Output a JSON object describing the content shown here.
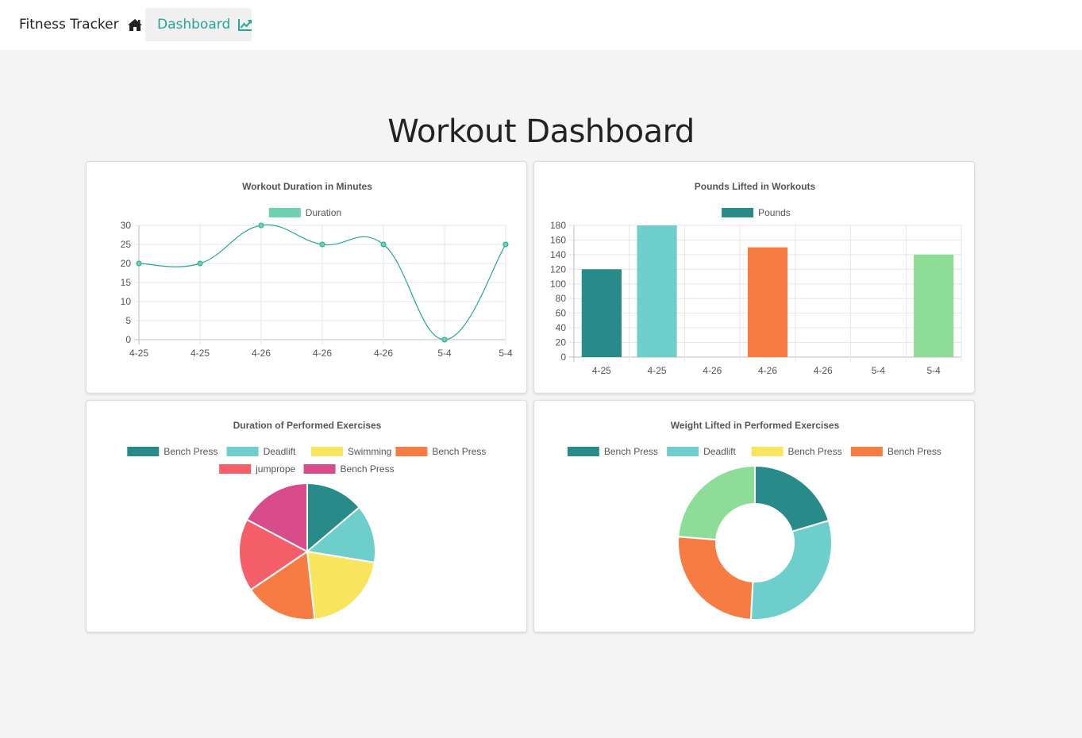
{
  "nav": {
    "brand_label": "Fitness Tracker",
    "brand_icon": "home-icon",
    "dashboard_label": "Dashboard",
    "dashboard_icon": "line-chart-icon",
    "accent_color": "#26a69a"
  },
  "page": {
    "title": "Workout Dashboard"
  },
  "chart_data": [
    {
      "type": "line",
      "title": "Workout Duration in Minutes",
      "categories": [
        "4-25",
        "4-25",
        "4-26",
        "4-26",
        "4-26",
        "5-4",
        "5-4"
      ],
      "series": [
        {
          "name": "Duration",
          "values": [
            20,
            20,
            30,
            25,
            25,
            0,
            25
          ],
          "color": "#26a69a",
          "legend_color": "#6fd1ad"
        }
      ],
      "ylim": [
        0,
        30
      ],
      "yticks": [
        0,
        5,
        10,
        15,
        20,
        25,
        30
      ],
      "grid": true,
      "legend": "top"
    },
    {
      "type": "bar",
      "title": "Pounds Lifted in Workouts",
      "categories": [
        "4-25",
        "4-25",
        "4-26",
        "4-26",
        "4-26",
        "5-4",
        "5-4"
      ],
      "series": [
        {
          "name": "Pounds",
          "values": [
            120,
            180,
            0,
            150,
            0,
            0,
            140
          ],
          "legend_color": "#288b89"
        }
      ],
      "colors": [
        "#288b89",
        "#6dcecb",
        "#f9e55d",
        "#f77c43",
        "#f55f6a",
        "#d94c8a",
        "#8ddd98"
      ],
      "ylim": [
        0,
        180
      ],
      "yticks": [
        0,
        20,
        40,
        60,
        80,
        100,
        120,
        140,
        160,
        180
      ],
      "grid": true,
      "legend": "top"
    },
    {
      "type": "pie",
      "title": "Duration of Performed Exercises",
      "labels": [
        "Bench Press",
        "Deadlift",
        "Swimming",
        "Bench Press",
        "jumprope",
        "Bench Press"
      ],
      "values": [
        20,
        20,
        30,
        25,
        25,
        25
      ],
      "colors": [
        "#288b89",
        "#6dcecb",
        "#f9e55d",
        "#f77c43",
        "#f55f6a",
        "#d94c8a",
        "#8ddd98"
      ],
      "legend": "top"
    },
    {
      "type": "pie",
      "donut": true,
      "title": "Weight Lifted in Performed Exercises",
      "labels": [
        "Bench Press",
        "Deadlift",
        "Bench Press",
        "Bench Press"
      ],
      "values": [
        120,
        180,
        150,
        140
      ],
      "colors": [
        "#288b89",
        "#6dcecb",
        "#f77c43",
        "#8ddd98",
        "#f9e55d"
      ],
      "legend_colors": [
        "#288b89",
        "#6dcecb",
        "#f9e55d",
        "#f77c43"
      ],
      "legend": "top"
    }
  ]
}
